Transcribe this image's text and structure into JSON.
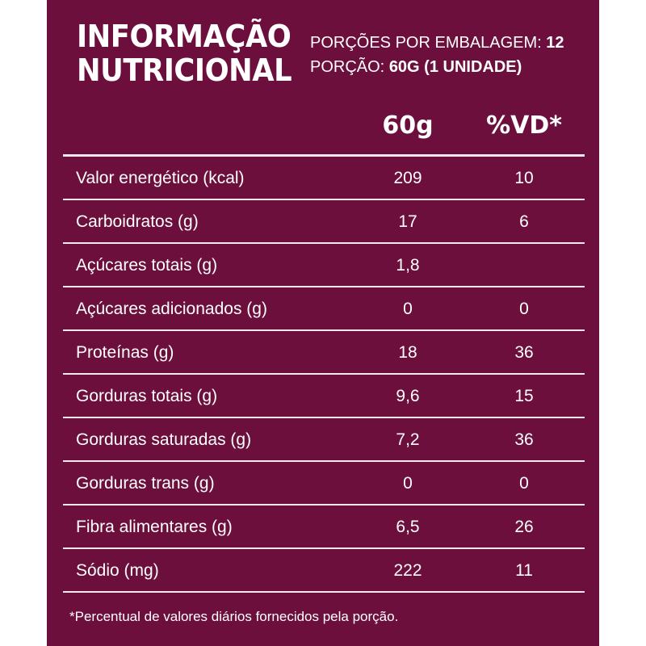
{
  "header": {
    "title_line1": "INFORMAÇÃO",
    "title_line2": "NUTRICIONAL",
    "portions_label": "PORÇÕES POR EMBALAGEM:",
    "portions_value": "12",
    "portion_label": "PORÇÃO:",
    "portion_value": "60G (1 UNIDADE)"
  },
  "table": {
    "columns": [
      "60g",
      "%VD*"
    ],
    "rows": [
      {
        "name": "Valor energético (kcal)",
        "value": "209",
        "vd": "10"
      },
      {
        "name": "Carboidratos (g)",
        "value": "17",
        "vd": "6"
      },
      {
        "name": "Açúcares totais (g)",
        "value": "1,8",
        "vd": ""
      },
      {
        "name": "Açúcares adicionados (g)",
        "value": "0",
        "vd": "0"
      },
      {
        "name": "Proteínas (g)",
        "value": "18",
        "vd": "36"
      },
      {
        "name": "Gorduras totais (g)",
        "value": "9,6",
        "vd": "15"
      },
      {
        "name": "Gorduras saturadas (g)",
        "value": "7,2",
        "vd": "36"
      },
      {
        "name": "Gorduras trans (g)",
        "value": "0",
        "vd": "0"
      },
      {
        "name": "Fibra alimentares (g)",
        "value": "6,5",
        "vd": "26"
      },
      {
        "name": "Sódio (mg)",
        "value": "222",
        "vd": "11"
      }
    ]
  },
  "footnote": "*Percentual de valores diários fornecidos pela porção.",
  "colors": {
    "background": "#6c0f3c",
    "text": "#ffffff"
  }
}
